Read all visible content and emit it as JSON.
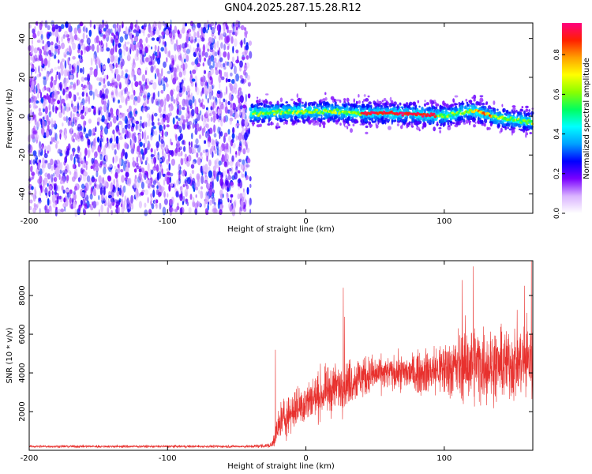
{
  "title": "GN04.2025.287.15.28.R12",
  "chart_data": [
    {
      "type": "heatmap",
      "name": "spectrogram",
      "xlabel": "Height of straight line (km)",
      "ylabel": "Frequency (Hz)",
      "xlim": [
        -200,
        164
      ],
      "ylim": [
        -50,
        48
      ],
      "xticks": [
        -200,
        -100,
        0,
        100
      ],
      "yticks": [
        -40,
        -20,
        0,
        20,
        40
      ],
      "noise_region_x": [
        -200,
        -40
      ],
      "signal_band_center_hz": [
        {
          "x": -40,
          "y": 1.5
        },
        {
          "x": -20,
          "y": 2
        },
        {
          "x": 0,
          "y": 2.5
        },
        {
          "x": 20,
          "y": 2.5
        },
        {
          "x": 40,
          "y": 1.5
        },
        {
          "x": 60,
          "y": 1.5
        },
        {
          "x": 80,
          "y": 1
        },
        {
          "x": 100,
          "y": 0
        },
        {
          "x": 120,
          "y": 3
        },
        {
          "x": 140,
          "y": -1
        },
        {
          "x": 164,
          "y": -3
        }
      ],
      "colorbar": {
        "label": "Normalized spectral amplitude",
        "range": [
          0,
          0.96
        ],
        "ticks": [
          0.0,
          0.2,
          0.4,
          0.6,
          0.8
        ],
        "colormap": [
          "#ffffff",
          "#d9b3ff",
          "#7a00ff",
          "#0000ff",
          "#00a0ff",
          "#00ffff",
          "#00ff60",
          "#8aff00",
          "#ffff00",
          "#ffa000",
          "#ff2000",
          "#ff0080"
        ]
      }
    },
    {
      "type": "line",
      "name": "snr",
      "xlabel": "Height of straight line (km)",
      "ylabel": "SNR (10 * v/v)",
      "xlim": [
        -200,
        164
      ],
      "ylim": [
        0,
        9800
      ],
      "xticks": [
        -200,
        -100,
        0,
        100
      ],
      "yticks": [
        2000,
        4000,
        6000,
        8000
      ],
      "color": "#e8312e",
      "envelope": [
        {
          "x": -200,
          "mean": 200,
          "spread": 60
        },
        {
          "x": -40,
          "mean": 200,
          "spread": 60
        },
        {
          "x": -25,
          "mean": 250,
          "spread": 120
        },
        {
          "x": -18,
          "mean": 1500,
          "spread": 1000
        },
        {
          "x": -10,
          "mean": 2000,
          "spread": 900
        },
        {
          "x": 0,
          "mean": 2500,
          "spread": 1000
        },
        {
          "x": 20,
          "mean": 3200,
          "spread": 1100
        },
        {
          "x": 40,
          "mean": 3800,
          "spread": 1000
        },
        {
          "x": 60,
          "mean": 4000,
          "spread": 700
        },
        {
          "x": 80,
          "mean": 4000,
          "spread": 900
        },
        {
          "x": 100,
          "mean": 4200,
          "spread": 1300
        },
        {
          "x": 120,
          "mean": 4500,
          "spread": 1800
        },
        {
          "x": 140,
          "mean": 4400,
          "spread": 1600
        },
        {
          "x": 164,
          "mean": 4700,
          "spread": 1800
        }
      ],
      "peaks": [
        {
          "x": -22,
          "y": 5200
        },
        {
          "x": 27,
          "y": 8400
        },
        {
          "x": 28,
          "y": 6900
        },
        {
          "x": 113,
          "y": 8800
        },
        {
          "x": 121,
          "y": 9500
        },
        {
          "x": 158,
          "y": 8500
        },
        {
          "x": 163,
          "y": 9800
        }
      ]
    }
  ]
}
